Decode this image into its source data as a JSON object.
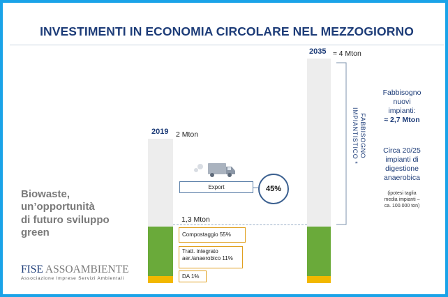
{
  "slide": {
    "title": "INVESTIMENTI IN ECONOMIA CIRCOLARE NEL MEZZOGIORNO",
    "accent_color": "#1aa3e8",
    "title_color": "#1d3c78",
    "tagline_lines": [
      "Biowaste,",
      "un’opportunità",
      "di futuro sviluppo",
      "green"
    ],
    "logo": {
      "brand_left": "FISE",
      "brand_right": "ASSOAMBIENTE",
      "subtitle": "Associazione Imprese Servizi Ambientali"
    },
    "truck_icon": "truck-icon"
  },
  "chart_data": {
    "type": "bar",
    "categories": [
      "2019",
      "2035"
    ],
    "unit": "Mton",
    "colors": {
      "compost": "#6aaa3a",
      "tratt": "#6aaa3a",
      "da": "#f2b800",
      "column": "#ededed"
    },
    "y_scale": {
      "min": 0,
      "max": 4
    },
    "bars": [
      {
        "year": "2019",
        "total_label": "2 Mton",
        "total": 2.0,
        "treated_label": "1,3 Mton",
        "treated": 1.3,
        "segments": [
          {
            "name": "Compostaggio",
            "pct_label": "55%",
            "value": 0.55
          },
          {
            "name": "Tratt. integrato aer./anaerobico",
            "pct_label": "11%",
            "value": 0.11
          },
          {
            "name": "DA",
            "pct_label": "1%",
            "value": 0.01
          }
        ],
        "export_label": "Export",
        "export_pct": "45%"
      },
      {
        "year": "2035",
        "total_label": "≈ 4 Mton",
        "total": 4.0,
        "need_label": "FABBISOGNO IMPIANTISTICO *",
        "need_lines": [
          "FABBISOGNO",
          "IMPIANTISTICO *"
        ]
      }
    ],
    "annotations": {
      "need_lines": [
        "Fabbisogno",
        "nuovi",
        "impianti:"
      ],
      "need_value": "≈ 2,7 Mton",
      "plants_lines": [
        "Circa 20/25",
        "impianti di",
        "digestione",
        "anaerobica"
      ],
      "note_lines": [
        "(ipotesi taglia",
        "media impianti –",
        "ca. 100.000 ton)"
      ]
    }
  }
}
